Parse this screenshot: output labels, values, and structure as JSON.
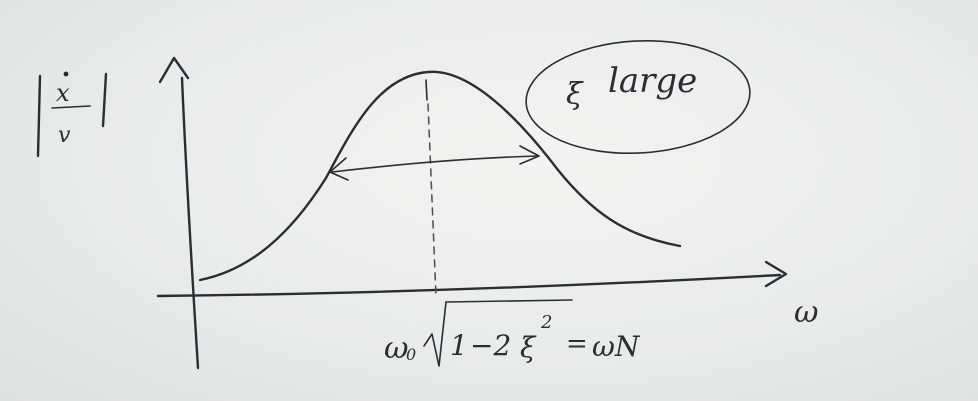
{
  "diagram": {
    "y_axis": {
      "numerator": "x",
      "denominator": "v"
    },
    "x_axis": {
      "label": "ω"
    },
    "curve": {
      "note_symbol": "ξ",
      "note_text": "large"
    },
    "peak_formula": {
      "omega0": "ω",
      "zero_sub": "0",
      "root_one": "1",
      "minus_two": "−2",
      "xi": "ξ",
      "exponent": "2",
      "equals": "=",
      "result": "ωN"
    }
  }
}
